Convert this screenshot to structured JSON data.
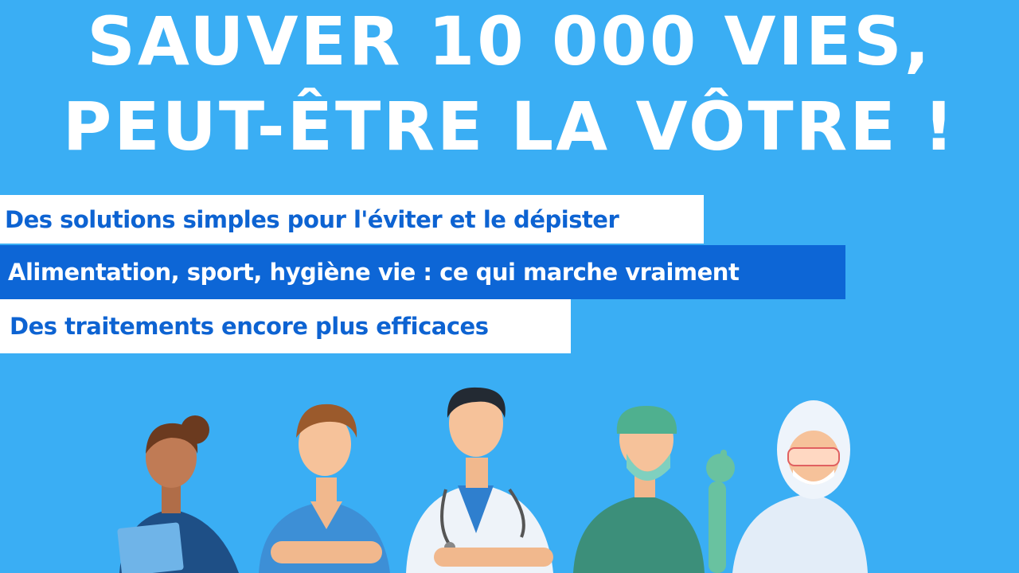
{
  "headline": {
    "line1": "SAUVER 10 000 VIES,",
    "line2": "PEUT-ÊTRE LA VÔTRE !"
  },
  "bullets": [
    "Des solutions simples pour l'éviter et le dépister",
    "Alimentation, sport, hygiène vie : ce qui marche vraiment",
    "Des traitements encore plus efficaces"
  ],
  "colors": {
    "background": "#3aaef4",
    "accent_blue": "#0d66d6",
    "white": "#ffffff"
  },
  "illustration": [
    "nurse-with-tablet",
    "male-nurse-arms-crossed",
    "doctor-with-stethoscope",
    "surgeon-with-mask-ok-gesture",
    "worker-in-protective-suit"
  ]
}
